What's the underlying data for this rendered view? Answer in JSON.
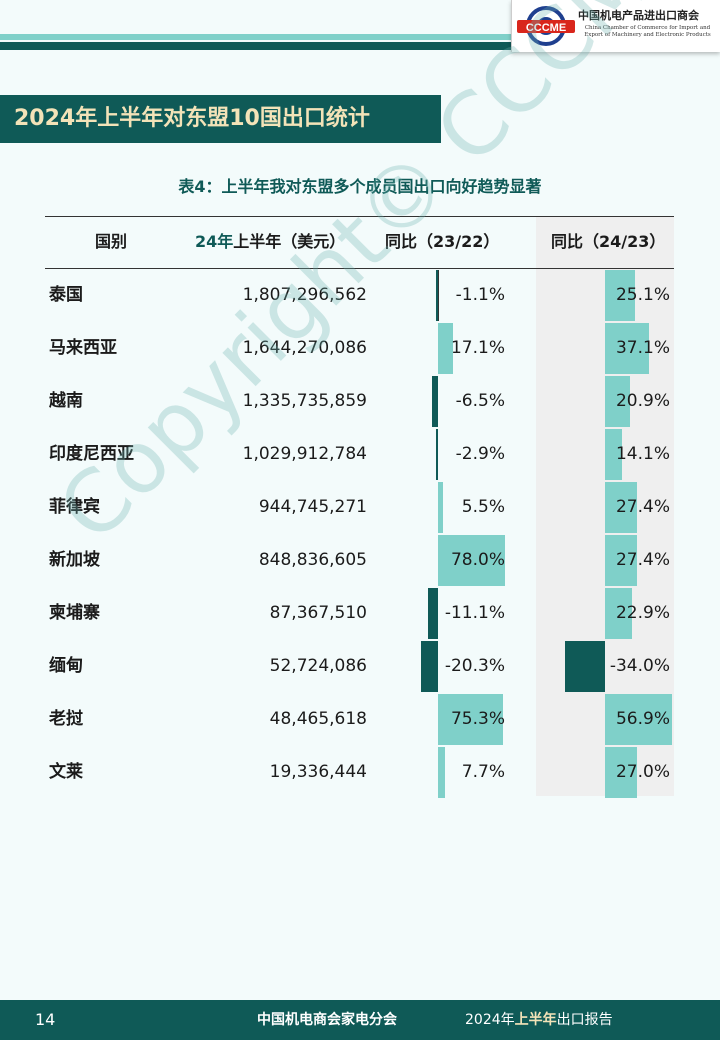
{
  "logo": {
    "mark": "CCCME",
    "name_cn": "中国机电产品进出口商会",
    "name_en": "China Chamber of Commerce for Import and Export of Machinery and Electronic Products"
  },
  "section_title": "2024年上半年对东盟10国出口统计",
  "table": {
    "caption": "表4：上半年我对东盟多个成员国出口向好趋势显著",
    "headers": {
      "country": "国别",
      "value_hl": "24年",
      "value_rest": "上半年（美元）",
      "yoy_23_22": "同比（23/22）",
      "yoy_24_23": "同比（24/23）"
    },
    "rows": [
      {
        "country": "泰国",
        "value": "1,807,296,562",
        "yoy_23_22": "-1.1%",
        "yoy_24_23": "25.1%"
      },
      {
        "country": "马来西亚",
        "value": "1,644,270,086",
        "yoy_23_22": "17.1%",
        "yoy_24_23": "37.1%"
      },
      {
        "country": "越南",
        "value": "1,335,735,859",
        "yoy_23_22": "-6.5%",
        "yoy_24_23": "20.9%"
      },
      {
        "country": "印度尼西亚",
        "value": "1,029,912,784",
        "yoy_23_22": "-2.9%",
        "yoy_24_23": "14.1%"
      },
      {
        "country": "菲律宾",
        "value": "944,745,271",
        "yoy_23_22": "5.5%",
        "yoy_24_23": "27.4%"
      },
      {
        "country": "新加坡",
        "value": "848,836,605",
        "yoy_23_22": "78.0%",
        "yoy_24_23": "27.4%"
      },
      {
        "country": "柬埔寨",
        "value": "87,367,510",
        "yoy_23_22": "-11.1%",
        "yoy_24_23": "22.9%"
      },
      {
        "country": "缅甸",
        "value": "52,724,086",
        "yoy_23_22": "-20.3%",
        "yoy_24_23": "-34.0%"
      },
      {
        "country": "老挝",
        "value": "48,465,618",
        "yoy_23_22": "75.3%",
        "yoy_24_23": "56.9%"
      },
      {
        "country": "文莱",
        "value": "19,336,444",
        "yoy_23_22": "7.7%",
        "yoy_24_23": "27.0%"
      }
    ]
  },
  "colors": {
    "dark_teal": "#0f5a57",
    "light_teal": "#7fd0c9",
    "cream": "#f3e3b8"
  },
  "watermark": "Copyright© CCCME",
  "footer": {
    "page": "14",
    "org": "中国机电商会家电分会",
    "report_year": "2024年",
    "report_hl": "上半年",
    "report_rest": "出口报告"
  }
}
